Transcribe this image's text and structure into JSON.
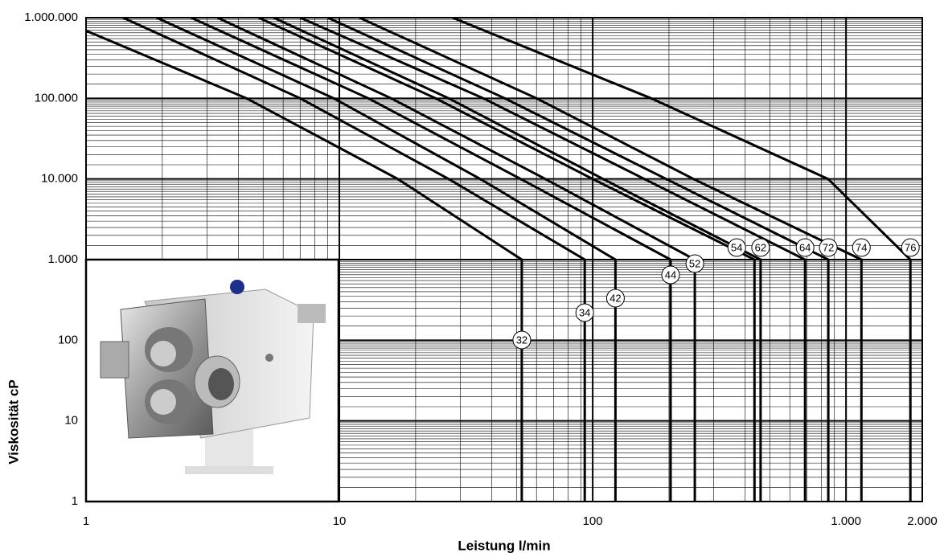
{
  "chart_data": {
    "type": "line",
    "xlabel": "Leistung l/min",
    "ylabel": "Viskosität cP",
    "log_x": true,
    "log_y": true,
    "grid": true,
    "color": "#000000",
    "xlim": [
      1,
      2000
    ],
    "ylim": [
      1,
      1000000
    ],
    "xticks": [
      1,
      10,
      100,
      {
        "value": 1000,
        "label": "1.000"
      },
      {
        "value": 2000,
        "label": "2.000"
      }
    ],
    "yticks": [
      1,
      10,
      100,
      {
        "value": 1000,
        "label": "1.000"
      },
      {
        "value": 10000,
        "label": "10.000"
      },
      {
        "value": 100000,
        "label": "100.000"
      },
      {
        "value": 1000000,
        "label": "1.000.000"
      }
    ],
    "series": [
      {
        "name": "32",
        "x": [
          1,
          4.3,
          17,
          52.5,
          52.5
        ],
        "values": [
          690000,
          100000,
          10000,
          1000,
          1
        ]
      },
      {
        "name": "34",
        "x": [
          1.4,
          7,
          27,
          93,
          93
        ],
        "values": [
          1000000,
          100000,
          10000,
          1000,
          1
        ]
      },
      {
        "name": "42",
        "x": [
          1.9,
          9.5,
          36,
          123,
          123
        ],
        "values": [
          1000000,
          100000,
          10000,
          1000,
          1
        ]
      },
      {
        "name": "44",
        "x": [
          2.6,
          13,
          52,
          203,
          203
        ],
        "values": [
          1000000,
          100000,
          10000,
          1000,
          1
        ]
      },
      {
        "name": "52",
        "x": [
          3.3,
          16,
          65,
          253,
          253
        ],
        "values": [
          1000000,
          100000,
          10000,
          1000,
          1
        ]
      },
      {
        "name": "54",
        "x": [
          4.8,
          24,
          100,
          435,
          435
        ],
        "values": [
          1000000,
          100000,
          10000,
          1000,
          1
        ]
      },
      {
        "name": "62",
        "x": [
          5.5,
          27,
          110,
          460,
          460
        ],
        "values": [
          1000000,
          100000,
          10000,
          1000,
          1
        ]
      },
      {
        "name": "64",
        "x": [
          7,
          37,
          160,
          689,
          689
        ],
        "values": [
          1000000,
          100000,
          10000,
          1000,
          1
        ]
      },
      {
        "name": "72",
        "x": [
          9,
          45,
          195,
          851,
          851
        ],
        "values": [
          1000000,
          100000,
          10000,
          1000,
          1
        ]
      },
      {
        "name": "74",
        "x": [
          12,
          60,
          250,
          1150,
          1150
        ],
        "values": [
          1000000,
          100000,
          10000,
          1000,
          1
        ]
      },
      {
        "name": "76",
        "x": [
          28,
          170,
          850,
          1795,
          1795
        ],
        "values": [
          1000000,
          100000,
          10000,
          1000,
          1
        ]
      }
    ]
  }
}
